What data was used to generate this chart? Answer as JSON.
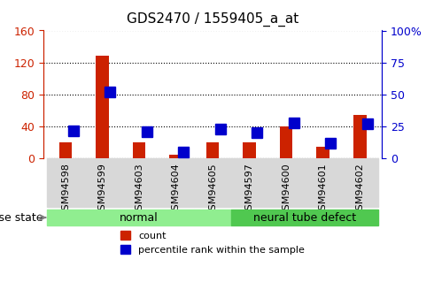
{
  "title": "GDS2470 / 1559405_a_at",
  "samples": [
    "GSM94598",
    "GSM94599",
    "GSM94603",
    "GSM94604",
    "GSM94605",
    "GSM94597",
    "GSM94600",
    "GSM94601",
    "GSM94602"
  ],
  "counts": [
    20,
    128,
    20,
    5,
    20,
    20,
    40,
    15,
    55
  ],
  "percentile_ranks": [
    22,
    52,
    21,
    5,
    23,
    20,
    28,
    12,
    27
  ],
  "left_ylim": [
    0,
    160
  ],
  "right_ylim": [
    0,
    100
  ],
  "left_yticks": [
    0,
    40,
    80,
    120,
    160
  ],
  "right_yticks": [
    0,
    25,
    50,
    75,
    100
  ],
  "right_yticklabels": [
    "0",
    "25",
    "50",
    "75",
    "100%"
  ],
  "groups": [
    {
      "label": "normal",
      "start": 0,
      "end": 5,
      "color": "#90ee90"
    },
    {
      "label": "neural tube defect",
      "start": 5,
      "end": 9,
      "color": "#50c850"
    }
  ],
  "bar_color": "#cc2200",
  "marker_color": "#0000cc",
  "bar_width": 0.35,
  "marker_size": 8,
  "disease_state_label": "disease state",
  "legend_items": [
    {
      "label": "count",
      "color": "#cc2200"
    },
    {
      "label": "percentile rank within the sample",
      "color": "#0000cc"
    }
  ],
  "grid_color": "black",
  "tick_color_left": "#cc2200",
  "tick_color_right": "#0000cc",
  "plot_bg": "white"
}
